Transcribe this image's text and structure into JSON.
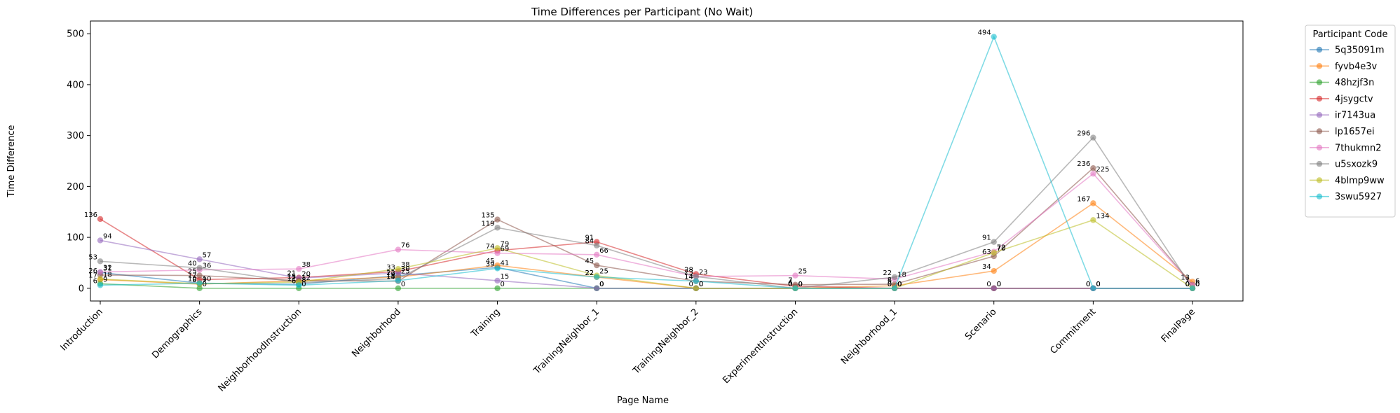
{
  "chart_data": {
    "type": "line",
    "title": "Time Differences per Participant (No Wait)",
    "xlabel": "Page Name",
    "ylabel": "Time Difference",
    "ylim": [
      -25,
      525
    ],
    "yticks": [
      0,
      100,
      200,
      300,
      400,
      500
    ],
    "grid": false,
    "legend_title": "Participant Code",
    "legend_position": "outside-upper-right",
    "categories": [
      "Introduction",
      "Demographics",
      "NeighborhoodInstruction",
      "Neighborhood",
      "Training",
      "TrainingNeighbor_1",
      "TrainingNeighbor_2",
      "ExperimentInstruction",
      "Neighborhood_1",
      "Scenario",
      "Commitment",
      "FinalPage"
    ],
    "series": [
      {
        "name": "5q35091m",
        "color": "#1f77b4",
        "values": [
          31,
          10,
          8,
          25,
          41,
          0,
          0,
          0,
          0,
          0,
          0,
          0
        ]
      },
      {
        "name": "fyvb4e3v",
        "color": "#ff7f0e",
        "values": [
          17,
          8,
          15,
          22,
          45,
          22,
          0,
          0,
          5,
          34,
          167,
          13
        ]
      },
      {
        "name": "48hzjf3n",
        "color": "#2ca02c",
        "values": [
          9,
          0,
          0,
          0,
          0,
          0,
          0,
          0,
          0,
          0,
          0,
          0
        ]
      },
      {
        "name": "4jsygctv",
        "color": "#d62728",
        "values": [
          136,
          17,
          21,
          33,
          74,
          91,
          28,
          4,
          0,
          0,
          0,
          0
        ]
      },
      {
        "name": "ir7143ua",
        "color": "#9467bd",
        "values": [
          94,
          57,
          20,
          30,
          15,
          0,
          0,
          0,
          0,
          0,
          0,
          0
        ]
      },
      {
        "name": "lp1657ei",
        "color": "#8c564b",
        "values": [
          26,
          25,
          15,
          14,
          135,
          45,
          14,
          7,
          8,
          63,
          236,
          7
        ]
      },
      {
        "name": "7thukmn2",
        "color": "#e377c2",
        "values": [
          32,
          36,
          38,
          76,
          69,
          66,
          23,
          25,
          18,
          72,
          225,
          6
        ]
      },
      {
        "name": "u5sxozk9",
        "color": "#7f7f7f",
        "values": [
          53,
          40,
          11,
          19,
          119,
          84,
          23,
          0,
          22,
          91,
          296,
          0
        ]
      },
      {
        "name": "4blmp9ww",
        "color": "#bcbd22",
        "values": [
          18,
          9,
          12,
          38,
          79,
          25,
          0,
          0,
          0,
          70,
          134,
          0
        ]
      },
      {
        "name": "3swu5927",
        "color": "#17becf",
        "values": [
          6,
          10,
          6,
          15,
          39,
          22,
          14,
          0,
          0,
          494,
          0,
          0
        ]
      }
    ]
  }
}
